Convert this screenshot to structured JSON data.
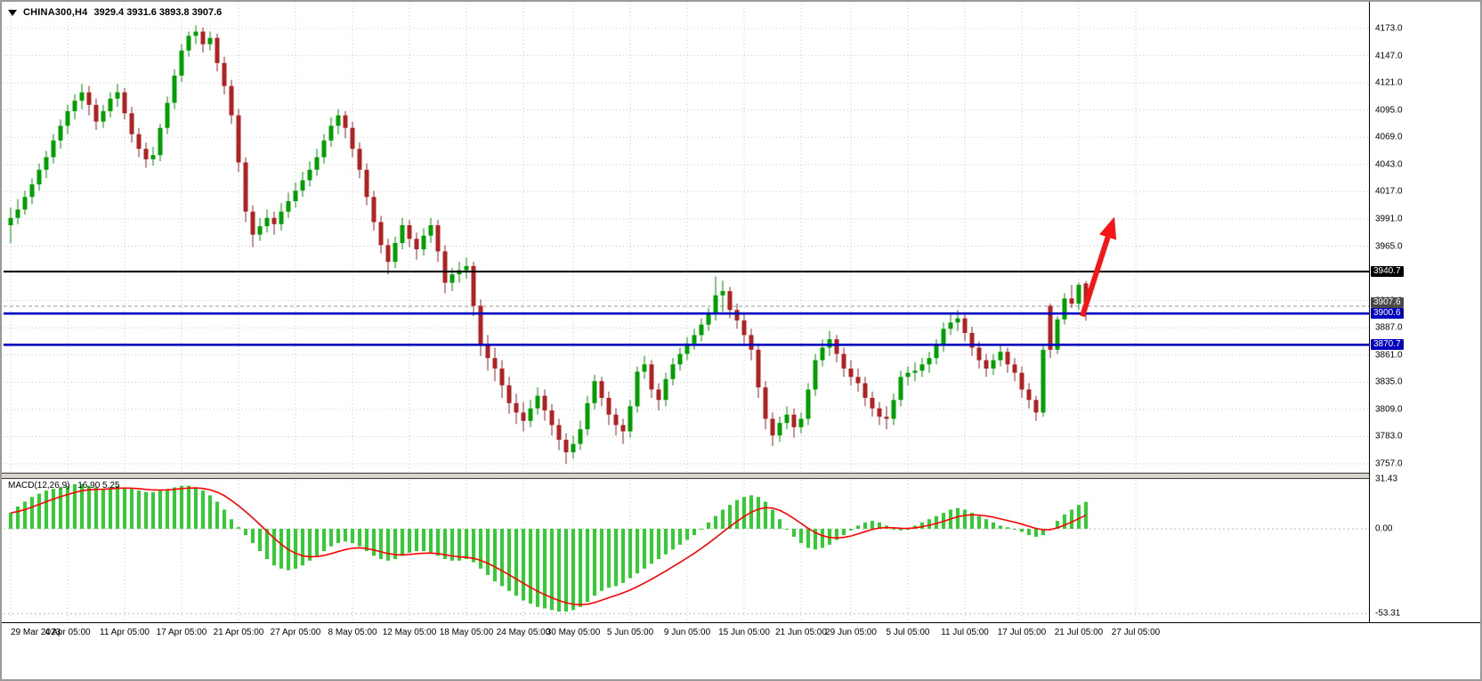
{
  "colors": {
    "background": "#FFFFFF",
    "grid": "#C9C9C9",
    "bull": "#00A000",
    "bear": "#B22222",
    "macd_bar": "#33CC33",
    "signal": "#FF0000",
    "level_black": "#000000",
    "level_blue": "#0000C0",
    "arrow": "#F81414"
  },
  "header": {
    "symbol": "CHINA300,H4",
    "ohlc": "3929.4 3931.6 3893.8 3907.6"
  },
  "chart_data": [
    {
      "type": "candlestick",
      "title": "CHINA300,H4",
      "ohlc_display": "3929.4 3931.6 3893.8 3907.6",
      "ylim": [
        3745,
        4190
      ],
      "grid": "dotted",
      "y_axis": {
        "tick_labels": [
          "4173.0",
          "4147.0",
          "4121.0",
          "4095.0",
          "4069.0",
          "4043.0",
          "4017.0",
          "3991.0",
          "3965.0",
          "3913.0",
          "3887.0",
          "3861.0",
          "3835.0",
          "3809.0",
          "3783.0",
          "3757.0"
        ]
      },
      "x_axis": {
        "tick_labels": [
          "29 Mar 2023",
          "4 Apr 05:00",
          "11 Apr 05:00",
          "17 Apr 05:00",
          "21 Apr 05:00",
          "27 Apr 05:00",
          "8 May 05:00",
          "12 May 05:00",
          "18 May 05:00",
          "24 May 05:00",
          "30 May 05:00",
          "5 Jun 05:00",
          "9 Jun 05:00",
          "15 Jun 05:00",
          "21 Jun 05:00",
          "29 Jun 05:00",
          "5 Jul 05:00",
          "11 Jul 05:00",
          "17 Jul 05:00",
          "21 Jul 05:00",
          "27 Jul 05:00"
        ],
        "tick_bars": [
          0,
          8,
          16,
          24,
          32,
          40,
          48,
          56,
          64,
          72,
          79,
          87,
          95,
          103,
          111,
          118,
          126,
          134,
          142,
          150,
          158
        ]
      },
      "price_tags": [
        {
          "label": "3940.7",
          "value": 3940.7,
          "bg": "#000000",
          "fg": "#FFFFFF"
        },
        {
          "label": "3907.6",
          "value": 3907.6,
          "bg": "#4A4A4A",
          "fg": "#FFFFFF"
        },
        {
          "label": "3900.6",
          "value": 3900.6,
          "bg": "#0000C0",
          "fg": "#FFFFFF"
        },
        {
          "label": "3870.7",
          "value": 3870.7,
          "bg": "#0000C0",
          "fg": "#FFFFFF"
        }
      ],
      "levels": [
        {
          "value": 3940.7,
          "color": "#000000",
          "width": 2.2
        },
        {
          "value": 3900.6,
          "color": "#0000C0",
          "width": 2.6
        },
        {
          "value": 3870.7,
          "color": "#0000C0",
          "width": 2.6
        }
      ],
      "current_price_line": {
        "value": 3907.6,
        "color": "#9A9A9A"
      },
      "annotations": {
        "arrow": {
          "from_bar": 150.5,
          "from_price": 3898,
          "to_bar": 155,
          "to_price": 3993,
          "color": "#F81414"
        }
      },
      "candles": [
        [
          3985,
          4002,
          3968,
          3992
        ],
        [
          3992,
          4010,
          3986,
          4000
        ],
        [
          4000,
          4018,
          3995,
          4012
        ],
        [
          4012,
          4030,
          4005,
          4024
        ],
        [
          4024,
          4044,
          4018,
          4038
        ],
        [
          4038,
          4056,
          4030,
          4050
        ],
        [
          4050,
          4072,
          4044,
          4066
        ],
        [
          4066,
          4086,
          4058,
          4080
        ],
        [
          4080,
          4100,
          4072,
          4094
        ],
        [
          4094,
          4110,
          4086,
          4104
        ],
        [
          4104,
          4120,
          4096,
          4112
        ],
        [
          4112,
          4118,
          4090,
          4100
        ],
        [
          4100,
          4106,
          4076,
          4084
        ],
        [
          4084,
          4100,
          4078,
          4094
        ],
        [
          4094,
          4112,
          4088,
          4106
        ],
        [
          4106,
          4120,
          4098,
          4112
        ],
        [
          4112,
          4116,
          4086,
          4092
        ],
        [
          4092,
          4098,
          4064,
          4072
        ],
        [
          4072,
          4078,
          4050,
          4058
        ],
        [
          4058,
          4064,
          4040,
          4048
        ],
        [
          4048,
          4060,
          4042,
          4052
        ],
        [
          4052,
          4082,
          4046,
          4078
        ],
        [
          4078,
          4108,
          4072,
          4102
        ],
        [
          4102,
          4134,
          4096,
          4128
        ],
        [
          4128,
          4158,
          4122,
          4152
        ],
        [
          4152,
          4170,
          4146,
          4166
        ],
        [
          4166,
          4176,
          4158,
          4170
        ],
        [
          4170,
          4174,
          4150,
          4158
        ],
        [
          4158,
          4170,
          4152,
          4164
        ],
        [
          4164,
          4168,
          4132,
          4140
        ],
        [
          4140,
          4146,
          4110,
          4118
        ],
        [
          4118,
          4124,
          4082,
          4090
        ],
        [
          4090,
          4096,
          4036,
          4045
        ],
        [
          4045,
          4050,
          3988,
          3998
        ],
        [
          3998,
          4004,
          3964,
          3976
        ],
        [
          3976,
          3992,
          3970,
          3984
        ],
        [
          3984,
          4000,
          3978,
          3992
        ],
        [
          3992,
          3998,
          3976,
          3986
        ],
        [
          3986,
          4006,
          3980,
          3998
        ],
        [
          3998,
          4016,
          3992,
          4008
        ],
        [
          4008,
          4026,
          4002,
          4018
        ],
        [
          4018,
          4036,
          4012,
          4028
        ],
        [
          4028,
          4046,
          4022,
          4038
        ],
        [
          4038,
          4058,
          4032,
          4050
        ],
        [
          4050,
          4072,
          4044,
          4066
        ],
        [
          4066,
          4088,
          4060,
          4080
        ],
        [
          4080,
          4096,
          4072,
          4090
        ],
        [
          4090,
          4094,
          4068,
          4078
        ],
        [
          4078,
          4084,
          4050,
          4058
        ],
        [
          4058,
          4064,
          4030,
          4038
        ],
        [
          4038,
          4044,
          4004,
          4012
        ],
        [
          4012,
          4018,
          3980,
          3988
        ],
        [
          3988,
          3994,
          3958,
          3966
        ],
        [
          3966,
          3972,
          3938,
          3950
        ],
        [
          3950,
          3974,
          3944,
          3968
        ],
        [
          3968,
          3992,
          3962,
          3985
        ],
        [
          3985,
          3990,
          3964,
          3972
        ],
        [
          3972,
          3978,
          3952,
          3962
        ],
        [
          3962,
          3982,
          3956,
          3975
        ],
        [
          3975,
          3992,
          3968,
          3985
        ],
        [
          3985,
          3990,
          3950,
          3960
        ],
        [
          3960,
          3966,
          3920,
          3930
        ],
        [
          3930,
          3944,
          3922,
          3938
        ],
        [
          3938,
          3950,
          3930,
          3942
        ],
        [
          3942,
          3954,
          3934,
          3946
        ],
        [
          3946,
          3950,
          3898,
          3908
        ],
        [
          3908,
          3914,
          3860,
          3870
        ],
        [
          3870,
          3880,
          3846,
          3858
        ],
        [
          3858,
          3868,
          3836,
          3848
        ],
        [
          3848,
          3856,
          3820,
          3832
        ],
        [
          3832,
          3840,
          3805,
          3815
        ],
        [
          3815,
          3824,
          3795,
          3806
        ],
        [
          3806,
          3816,
          3788,
          3798
        ],
        [
          3798,
          3818,
          3792,
          3810
        ],
        [
          3810,
          3830,
          3804,
          3822
        ],
        [
          3822,
          3828,
          3798,
          3808
        ],
        [
          3808,
          3814,
          3784,
          3794
        ],
        [
          3794,
          3800,
          3770,
          3780
        ],
        [
          3780,
          3786,
          3757,
          3768
        ],
        [
          3768,
          3784,
          3762,
          3776
        ],
        [
          3776,
          3798,
          3770,
          3790
        ],
        [
          3790,
          3822,
          3784,
          3815
        ],
        [
          3815,
          3842,
          3809,
          3836
        ],
        [
          3836,
          3840,
          3812,
          3820
        ],
        [
          3820,
          3826,
          3794,
          3804
        ],
        [
          3804,
          3810,
          3784,
          3794
        ],
        [
          3794,
          3800,
          3776,
          3788
        ],
        [
          3788,
          3818,
          3782,
          3812
        ],
        [
          3812,
          3850,
          3806,
          3845
        ],
        [
          3845,
          3860,
          3838,
          3852
        ],
        [
          3852,
          3856,
          3820,
          3828
        ],
        [
          3828,
          3834,
          3808,
          3818
        ],
        [
          3818,
          3844,
          3812,
          3838
        ],
        [
          3838,
          3858,
          3832,
          3852
        ],
        [
          3852,
          3868,
          3846,
          3862
        ],
        [
          3862,
          3878,
          3856,
          3872
        ],
        [
          3872,
          3886,
          3866,
          3880
        ],
        [
          3880,
          3896,
          3874,
          3890
        ],
        [
          3890,
          3906,
          3884,
          3900
        ],
        [
          3900,
          3936,
          3894,
          3918
        ],
        [
          3918,
          3932,
          3902,
          3922
        ],
        [
          3922,
          3926,
          3896,
          3904
        ],
        [
          3904,
          3910,
          3886,
          3894
        ],
        [
          3894,
          3900,
          3872,
          3880
        ],
        [
          3880,
          3886,
          3856,
          3866
        ],
        [
          3866,
          3872,
          3820,
          3830
        ],
        [
          3830,
          3836,
          3790,
          3800
        ],
        [
          3800,
          3806,
          3774,
          3784
        ],
        [
          3784,
          3802,
          3778,
          3796
        ],
        [
          3796,
          3812,
          3790,
          3804
        ],
        [
          3804,
          3810,
          3782,
          3792
        ],
        [
          3792,
          3806,
          3786,
          3800
        ],
        [
          3800,
          3834,
          3794,
          3828
        ],
        [
          3828,
          3862,
          3822,
          3856
        ],
        [
          3856,
          3876,
          3850,
          3868
        ],
        [
          3868,
          3884,
          3860,
          3876
        ],
        [
          3876,
          3880,
          3854,
          3862
        ],
        [
          3862,
          3868,
          3840,
          3848
        ],
        [
          3848,
          3856,
          3832,
          3840
        ],
        [
          3840,
          3848,
          3826,
          3834
        ],
        [
          3834,
          3840,
          3812,
          3820
        ],
        [
          3820,
          3826,
          3802,
          3810
        ],
        [
          3810,
          3816,
          3794,
          3802
        ],
        [
          3802,
          3812,
          3790,
          3800
        ],
        [
          3800,
          3824,
          3794,
          3818
        ],
        [
          3818,
          3846,
          3812,
          3840
        ],
        [
          3840,
          3850,
          3832,
          3844
        ],
        [
          3844,
          3854,
          3836,
          3846
        ],
        [
          3846,
          3858,
          3840,
          3852
        ],
        [
          3852,
          3864,
          3844,
          3858
        ],
        [
          3858,
          3876,
          3852,
          3870
        ],
        [
          3870,
          3892,
          3864,
          3886
        ],
        [
          3886,
          3900,
          3880,
          3892
        ],
        [
          3892,
          3904,
          3884,
          3896
        ],
        [
          3896,
          3900,
          3874,
          3882
        ],
        [
          3882,
          3888,
          3860,
          3868
        ],
        [
          3868,
          3874,
          3848,
          3856
        ],
        [
          3856,
          3862,
          3840,
          3848
        ],
        [
          3848,
          3862,
          3842,
          3856
        ],
        [
          3856,
          3870,
          3850,
          3864
        ],
        [
          3864,
          3868,
          3844,
          3852
        ],
        [
          3852,
          3858,
          3836,
          3844
        ],
        [
          3844,
          3850,
          3820,
          3828
        ],
        [
          3828,
          3834,
          3810,
          3818
        ],
        [
          3818,
          3822,
          3798,
          3806
        ],
        [
          3806,
          3870,
          3802,
          3866
        ],
        [
          3908,
          3910,
          3858,
          3866
        ],
        [
          3866,
          3898,
          3862,
          3895
        ],
        [
          3895,
          3920,
          3890,
          3915
        ],
        [
          3915,
          3928,
          3906,
          3910
        ],
        [
          3910,
          3930,
          3904,
          3928
        ],
        [
          3929.4,
          3931.6,
          3893.8,
          3907.6
        ]
      ]
    },
    {
      "type": "bar",
      "label": "MACD(12,26,9)",
      "values_display": "16.90 5.25",
      "signal_period": 9,
      "y_axis": {
        "tick_labels": [
          "31.43",
          "0.00",
          "-53.31"
        ]
      },
      "ylim": [
        -53.31,
        31.43
      ],
      "values": [
        10,
        14,
        17,
        20,
        22,
        24,
        25,
        26,
        27,
        28,
        28,
        27,
        26,
        25,
        26,
        27,
        26,
        25,
        24,
        23,
        23,
        24,
        25,
        26,
        27,
        27,
        26,
        24,
        21,
        17,
        12,
        6,
        1,
        -4,
        -9,
        -14,
        -19,
        -23,
        -25,
        -26,
        -25,
        -23,
        -20,
        -17,
        -14,
        -11,
        -9,
        -8,
        -9,
        -11,
        -14,
        -17,
        -19,
        -20,
        -19,
        -17,
        -15,
        -14,
        -14,
        -15,
        -17,
        -19,
        -20,
        -20,
        -19,
        -21,
        -25,
        -29,
        -33,
        -36,
        -39,
        -42,
        -45,
        -47,
        -49,
        -50,
        -51,
        -52,
        -52,
        -51,
        -49,
        -46,
        -42,
        -39,
        -37,
        -36,
        -34,
        -31,
        -28,
        -25,
        -22,
        -19,
        -16,
        -13,
        -10,
        -7,
        -4,
        0,
        4,
        8,
        12,
        15,
        18,
        20,
        21,
        20,
        17,
        12,
        6,
        0,
        -5,
        -9,
        -12,
        -13,
        -12,
        -10,
        -7,
        -4,
        -1,
        2,
        4,
        5,
        4,
        2,
        0,
        -1,
        0,
        2,
        4,
        6,
        8,
        10,
        12,
        13,
        12,
        10,
        8,
        6,
        4,
        2,
        1,
        0,
        -2,
        -4,
        -5,
        -4,
        0,
        5,
        9,
        12,
        15,
        16.9
      ]
    }
  ]
}
